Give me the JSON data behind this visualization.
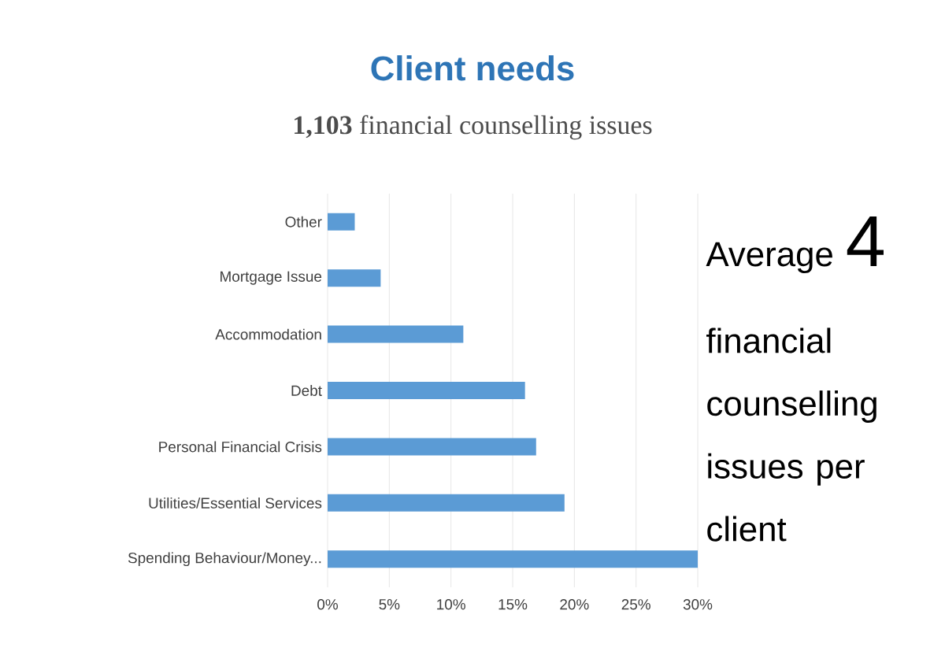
{
  "chart_data": {
    "type": "bar",
    "orientation": "horizontal",
    "title": "Client needs",
    "subtitle": "**1,103** financial counselling issues",
    "categories": [
      "Other",
      "Mortgage Issue",
      "Accommodation",
      "Debt",
      "Personal Financial Crisis",
      "Utilities/Essential Services",
      "Spending Behaviour/Money..."
    ],
    "values": [
      2.2,
      4.3,
      11.0,
      16.0,
      16.9,
      19.2,
      30.0
    ],
    "color": "#5b9bd5",
    "xlim": [
      0,
      30
    ],
    "xticks": [
      {
        "value": 0,
        "label": "0%"
      },
      {
        "value": 5,
        "label": "5%"
      },
      {
        "value": 10,
        "label": "10%"
      },
      {
        "value": 15,
        "label": "15%"
      },
      {
        "value": 20,
        "label": "20%"
      },
      {
        "value": 25,
        "label": "25%"
      },
      {
        "value": 30,
        "label": "30%"
      }
    ],
    "grid": "x",
    "annotations": [
      "Average",
      "4",
      "financial counselling issues per client"
    ]
  }
}
